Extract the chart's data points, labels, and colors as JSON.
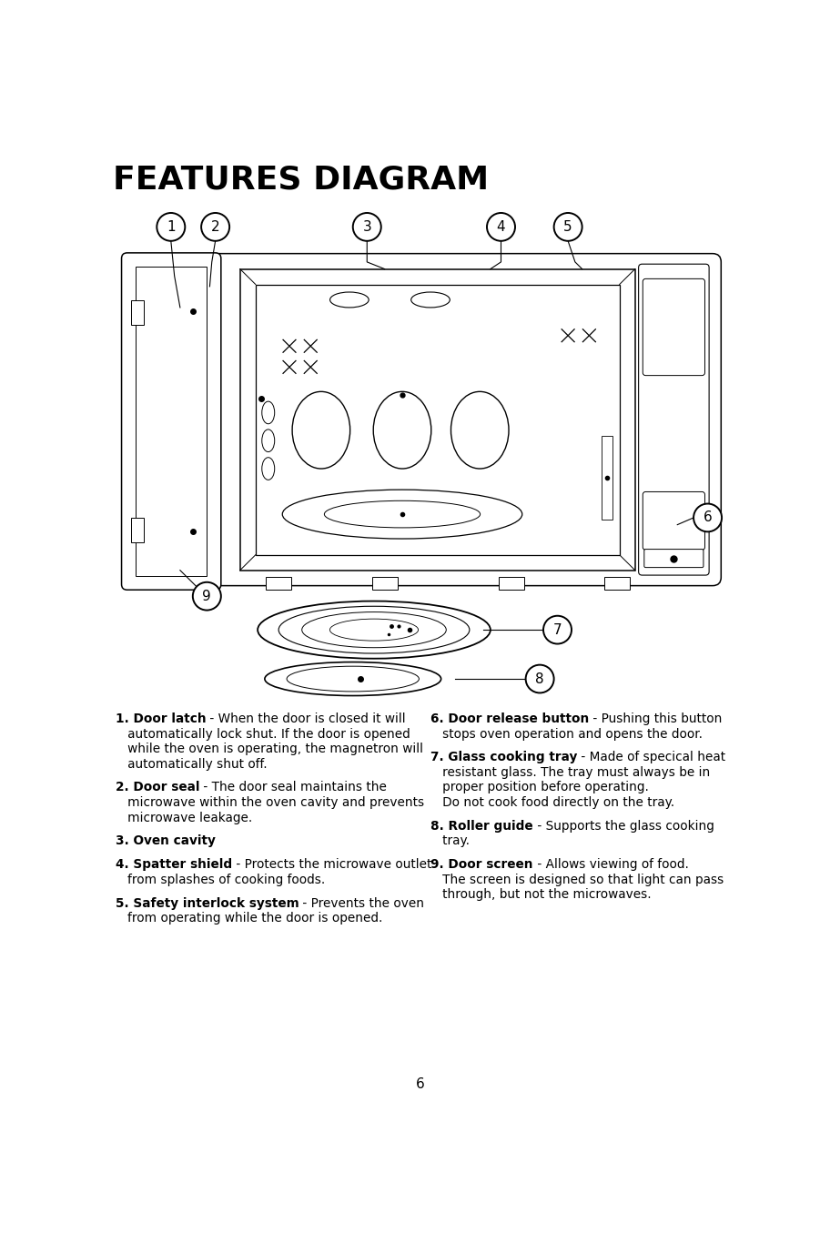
{
  "title": "FEATURES DIAGRAM",
  "title_fontsize": 26,
  "bg_color": "#ffffff",
  "text_color": "#000000",
  "page_number": "6",
  "items_left": [
    {
      "num": "1",
      "bold": "Door latch",
      "rest": " - When the door is closed it will\n   automatically lock shut. If the door is opened\n   while the oven is operating, the magnetron will\n   automatically shut off."
    },
    {
      "num": "2",
      "bold": "Door seal",
      "rest": " - The door seal maintains the\n   microwave within the oven cavity and prevents\n   microwave leakage."
    },
    {
      "num": "3",
      "bold": "Oven cavity",
      "rest": ""
    },
    {
      "num": "4",
      "bold": "Spatter shield",
      "rest": " - Protects the microwave outlet\n   from splashes of cooking foods."
    },
    {
      "num": "5",
      "bold": "Safety interlock system",
      "rest": " - Prevents the oven\n   from operating while the door is opened."
    }
  ],
  "items_right": [
    {
      "num": "6",
      "bold": "Door release button",
      "rest": " - Pushing this button\n   stops oven operation and opens the door."
    },
    {
      "num": "7",
      "bold": "Glass cooking tray",
      "rest": " - Made of specical heat\n   resistant glass. The tray must always be in\n   proper position before operating.\n   Do not cook food directly on the tray."
    },
    {
      "num": "8",
      "bold": "Roller guide",
      "rest": " - Supports the glass cooking\n   tray."
    },
    {
      "num": "9",
      "bold": "Door screen",
      "rest": " - Allows viewing of food.\n   The screen is designed so that light can pass\n   through, but not the microwaves."
    }
  ]
}
